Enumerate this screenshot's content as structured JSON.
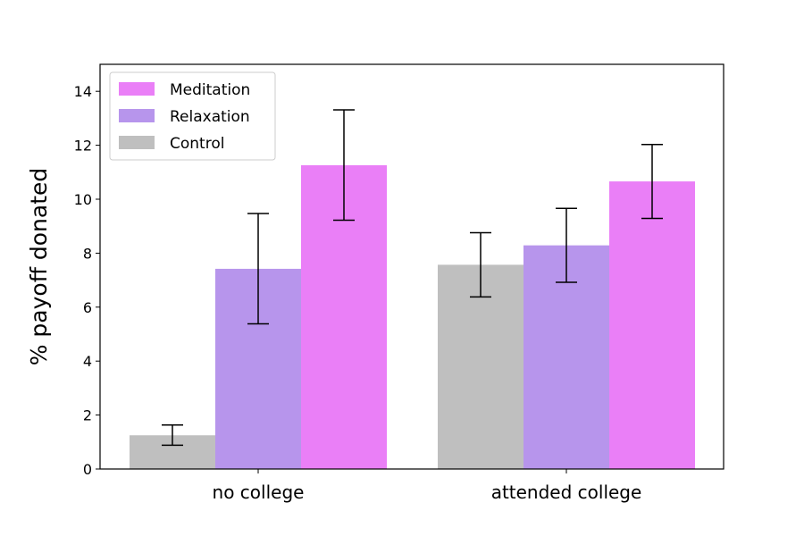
{
  "chart_data": {
    "type": "bar",
    "ylabel": "% payoff donated",
    "xlabel": "",
    "ylim": [
      0,
      15
    ],
    "yticks": [
      0,
      2,
      4,
      6,
      8,
      10,
      12,
      14
    ],
    "categories": [
      "no college",
      "attended college"
    ],
    "series": [
      {
        "name": "Control",
        "color": "#bfbfbf",
        "values": [
          1.25,
          7.57
        ],
        "error_low": [
          0.88,
          6.38
        ],
        "error_high": [
          1.63,
          8.76
        ]
      },
      {
        "name": "Relaxation",
        "color": "#b795ec",
        "values": [
          7.42,
          8.29
        ],
        "error_low": [
          5.38,
          6.92
        ],
        "error_high": [
          9.47,
          9.66
        ]
      },
      {
        "name": "Meditation",
        "color": "#ea7ff7",
        "values": [
          11.26,
          10.66
        ],
        "error_low": [
          9.22,
          9.29
        ],
        "error_high": [
          13.31,
          12.03
        ]
      }
    ],
    "legend_order": [
      "Meditation",
      "Relaxation",
      "Control"
    ],
    "legend_position": "top-left",
    "grid": false
  }
}
